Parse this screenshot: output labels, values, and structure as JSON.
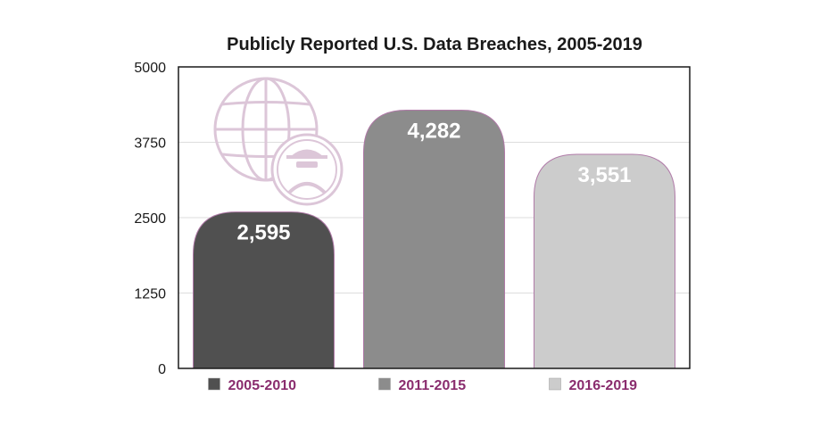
{
  "chart_data": {
    "type": "bar",
    "title": "Publicly Reported U.S. Data Breaches, 2005-2019",
    "categories": [
      "2005-2010",
      "2011-2015",
      "2016-2019"
    ],
    "values": [
      2595,
      4282,
      3551
    ],
    "value_labels": [
      "2,595",
      "4,282",
      "3,551"
    ],
    "bar_colors": [
      "#505050",
      "#8c8c8c",
      "#cccccc"
    ],
    "ylim": [
      0,
      5000
    ],
    "yticks": [
      0,
      1250,
      2500,
      3750,
      5000
    ],
    "ytick_labels": [
      "0",
      "1250",
      "2500",
      "3750",
      "5000"
    ],
    "grid": true,
    "legend_position": "bottom",
    "legend_text_color": "#8a2d6e",
    "illustration_color": "#dcc6d8",
    "icons": [
      "globe-icon",
      "spy-avatar-icon"
    ]
  }
}
